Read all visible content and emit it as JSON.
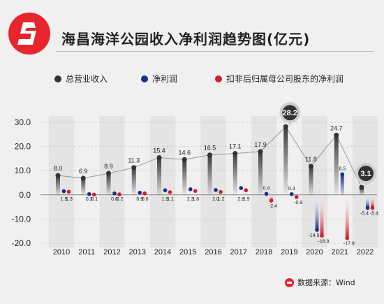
{
  "header": {
    "title": "海昌海洋公园收入净利润趋势图(亿元)",
    "logo_icon": "brand-s-logo-icon"
  },
  "legend": [
    {
      "label": "总营业收入",
      "color": "#333333"
    },
    {
      "label": "净利润",
      "color": "#1a2f8a"
    },
    {
      "label": "扣非后归属母公司股东的净利润",
      "color": "#d01f2b"
    }
  ],
  "source": {
    "label": "数据来源：Wind"
  },
  "colors": {
    "accent": "#e8242d",
    "revenue": "#333333",
    "net_profit": "#1a2f8a",
    "deducted_profit": "#d01f2b",
    "background": "#f0f0f0"
  },
  "chart_data": {
    "type": "bar",
    "title": "海昌海洋公园收入净利润趋势图(亿元)",
    "categories": [
      "2010",
      "2011",
      "2012",
      "2013",
      "2014",
      "2015",
      "2016",
      "2017",
      "2018",
      "2019",
      "2020",
      "2021",
      "2022"
    ],
    "series": [
      {
        "name": "总营业收入",
        "values": [
          8.0,
          6.9,
          8.9,
          11.3,
          15.4,
          14.6,
          16.5,
          17.1,
          17.9,
          28.2,
          11.8,
          24.7,
          3.1
        ],
        "labels": [
          "8.0",
          "6.9",
          "8.9",
          "11.3",
          "15.4",
          "14.6",
          "16.5",
          "17.1",
          "17.9",
          "28.2",
          "11.8",
          "24.7",
          "3.1"
        ]
      },
      {
        "name": "净利润",
        "values": [
          1.5,
          0.3,
          0.6,
          0.9,
          1.9,
          2.3,
          2.0,
          2.8,
          0.4,
          0.3,
          -14.5,
          8.5,
          -5.4
        ],
        "labels": [
          "1.5",
          "0.3",
          "0.6",
          "0.9",
          "1.9",
          "2.3",
          "2.0",
          "2.8",
          "0.4",
          "0.3",
          "-14.5",
          "8.5",
          "-5.4"
        ]
      },
      {
        "name": "扣非后归属母公司股东的净利润",
        "values": [
          1.3,
          0.1,
          0.2,
          0.6,
          1.1,
          1.6,
          1.2,
          1.9,
          -2.4,
          -0.9,
          -16.9,
          -17.9,
          -5.4
        ],
        "labels": [
          "1.3",
          "0.1",
          "0.2",
          "0.6",
          "1.1",
          "1.6",
          "1.2",
          "1.9",
          "-2.4",
          "-0.9",
          "-16.9",
          "-17.9",
          "-5.4"
        ]
      }
    ],
    "yticks": [
      "30.0",
      "20.0",
      "10.0",
      "0.0",
      "-10.0",
      "-20.0"
    ],
    "ylim": [
      -20,
      30
    ],
    "highlighted": [
      "28.2",
      "3.1"
    ],
    "grid": true,
    "legend_position": "top"
  }
}
